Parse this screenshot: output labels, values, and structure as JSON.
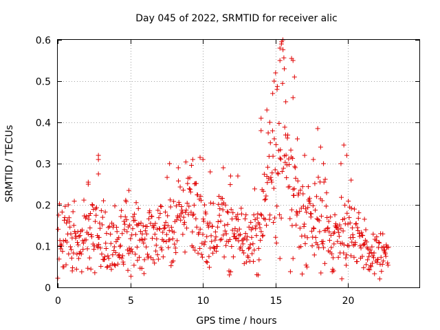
{
  "chart_data": {
    "type": "scatter",
    "title": "Day 045 of 2022, SRMTID for receiver alic",
    "xlabel": "GPS time / hours",
    "ylabel": "SRMTID / TECUs",
    "xlim": [
      0,
      24.9
    ],
    "ylim": [
      0,
      0.6
    ],
    "xticks": [
      0,
      5,
      10,
      15,
      20
    ],
    "yticks": [
      0,
      0.1,
      0.2,
      0.3,
      0.4,
      0.5,
      0.6
    ],
    "xtick_labels": [
      "0",
      "5",
      "10",
      "15",
      "20"
    ],
    "ytick_labels": [
      "0",
      "0.1",
      "0.2",
      "0.3",
      "0.4",
      "0.5",
      "0.6"
    ],
    "grid": true,
    "marker": "+",
    "color": "#e00000",
    "trend": [
      [
        0.0,
        0.12
      ],
      [
        0.5,
        0.13
      ],
      [
        1.0,
        0.12
      ],
      [
        1.5,
        0.11
      ],
      [
        2.0,
        0.12
      ],
      [
        2.5,
        0.15
      ],
      [
        3.0,
        0.12
      ],
      [
        3.5,
        0.1
      ],
      [
        4.0,
        0.1
      ],
      [
        4.5,
        0.12
      ],
      [
        5.0,
        0.13
      ],
      [
        5.5,
        0.14
      ],
      [
        6.0,
        0.11
      ],
      [
        6.5,
        0.12
      ],
      [
        7.0,
        0.13
      ],
      [
        7.5,
        0.14
      ],
      [
        8.0,
        0.15
      ],
      [
        8.5,
        0.18
      ],
      [
        9.0,
        0.2
      ],
      [
        9.5,
        0.19
      ],
      [
        10.0,
        0.14
      ],
      [
        10.5,
        0.12
      ],
      [
        11.0,
        0.14
      ],
      [
        11.5,
        0.15
      ],
      [
        12.0,
        0.14
      ],
      [
        12.5,
        0.13
      ],
      [
        13.0,
        0.11
      ],
      [
        13.5,
        0.12
      ],
      [
        14.0,
        0.13
      ],
      [
        14.5,
        0.22
      ],
      [
        15.0,
        0.32
      ],
      [
        15.5,
        0.38
      ],
      [
        16.0,
        0.25
      ],
      [
        16.5,
        0.2
      ],
      [
        17.0,
        0.17
      ],
      [
        17.5,
        0.16
      ],
      [
        18.0,
        0.2
      ],
      [
        18.5,
        0.15
      ],
      [
        19.0,
        0.11
      ],
      [
        19.5,
        0.14
      ],
      [
        20.0,
        0.15
      ],
      [
        20.5,
        0.11
      ],
      [
        21.0,
        0.09
      ],
      [
        21.5,
        0.08
      ],
      [
        22.0,
        0.08
      ],
      [
        22.5,
        0.08
      ],
      [
        22.8,
        0.07
      ]
    ],
    "highlights": [
      [
        2.1,
        0.255
      ],
      [
        2.1,
        0.25
      ],
      [
        2.8,
        0.32
      ],
      [
        2.8,
        0.31
      ],
      [
        2.8,
        0.275
      ],
      [
        4.9,
        0.235
      ],
      [
        7.7,
        0.3
      ],
      [
        8.3,
        0.29
      ],
      [
        9.3,
        0.31
      ],
      [
        9.8,
        0.315
      ],
      [
        10.0,
        0.31
      ],
      [
        10.5,
        0.28
      ],
      [
        11.4,
        0.29
      ],
      [
        11.9,
        0.27
      ],
      [
        12.4,
        0.27
      ],
      [
        14.0,
        0.41
      ],
      [
        14.0,
        0.38
      ],
      [
        14.4,
        0.43
      ],
      [
        14.6,
        0.4
      ],
      [
        14.8,
        0.47
      ],
      [
        14.9,
        0.5
      ],
      [
        15.0,
        0.52
      ],
      [
        15.1,
        0.48
      ],
      [
        15.3,
        0.58
      ],
      [
        15.4,
        0.59
      ],
      [
        15.5,
        0.6
      ],
      [
        15.3,
        0.55
      ],
      [
        15.6,
        0.53
      ],
      [
        15.7,
        0.45
      ],
      [
        16.1,
        0.555
      ],
      [
        16.2,
        0.55
      ],
      [
        16.3,
        0.51
      ],
      [
        16.2,
        0.46
      ],
      [
        16.5,
        0.36
      ],
      [
        17.0,
        0.32
      ],
      [
        17.6,
        0.31
      ],
      [
        17.9,
        0.385
      ],
      [
        18.1,
        0.34
      ],
      [
        18.3,
        0.3
      ],
      [
        19.7,
        0.345
      ],
      [
        19.9,
        0.32
      ],
      [
        19.5,
        0.3
      ],
      [
        20.2,
        0.26
      ],
      [
        19.0,
        0.04
      ],
      [
        3.9,
        0.055
      ],
      [
        1.0,
        0.04
      ],
      [
        13.8,
        0.03
      ],
      [
        15.3,
        0.07
      ],
      [
        16.2,
        0.07
      ]
    ]
  }
}
